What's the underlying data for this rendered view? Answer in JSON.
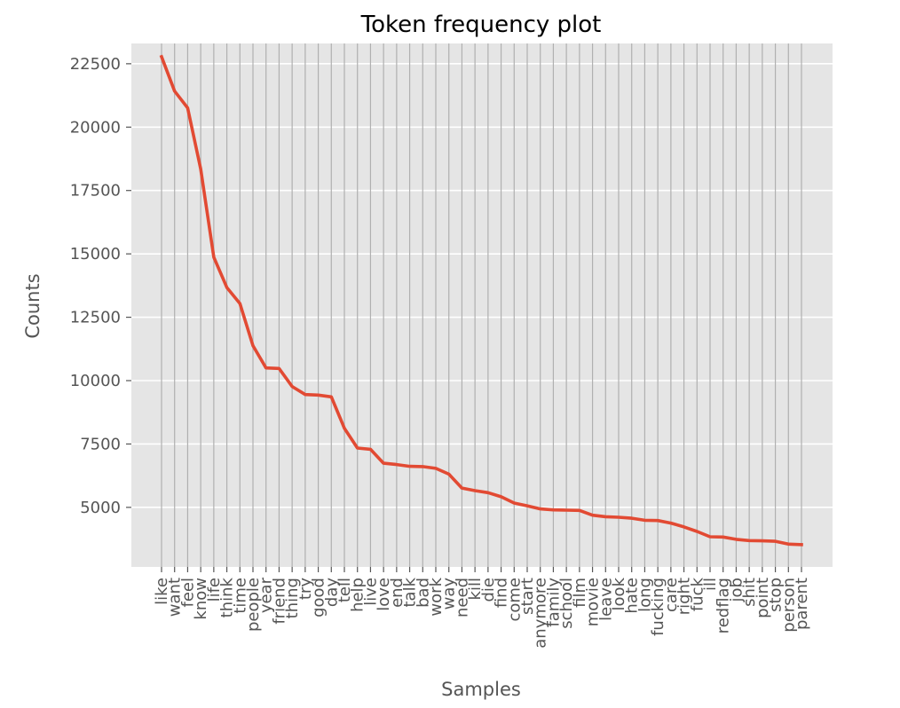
{
  "chart_data": {
    "type": "line",
    "title": "Token frequency plot",
    "xlabel": "Samples",
    "ylabel": "Counts",
    "grid": true,
    "ylim": [
      2650,
      23300
    ],
    "yticks": [
      5000,
      7500,
      10000,
      12500,
      15000,
      17500,
      20000,
      22500
    ],
    "yticklabels": [
      "5000",
      "7500",
      "10000",
      "12500",
      "15000",
      "17500",
      "20000",
      "22500"
    ],
    "categories": [
      "like",
      "want",
      "feel",
      "know",
      "life",
      "think",
      "time",
      "people",
      "year",
      "friend",
      "thing",
      "try",
      "good",
      "day",
      "tell",
      "help",
      "live",
      "love",
      "end",
      "talk",
      "bad",
      "work",
      "way",
      "need",
      "kill",
      "die",
      "find",
      "come",
      "start",
      "anymore",
      "family",
      "school",
      "film",
      "movie",
      "leave",
      "look",
      "hate",
      "long",
      "fucking",
      "care",
      "right",
      "fuck",
      "ill",
      "redflag",
      "job",
      "shit",
      "point",
      "stop",
      "person",
      "parent"
    ],
    "values": [
      22780,
      21420,
      20760,
      18350,
      14870,
      13670,
      13040,
      11380,
      10500,
      10480,
      9770,
      9450,
      9430,
      9360,
      8120,
      7340,
      7290,
      6740,
      6690,
      6620,
      6610,
      6540,
      6310,
      5760,
      5660,
      5580,
      5420,
      5170,
      5060,
      4940,
      4900,
      4890,
      4880,
      4690,
      4630,
      4610,
      4570,
      4490,
      4480,
      4380,
      4230,
      4050,
      3840,
      3830,
      3740,
      3690,
      3680,
      3660,
      3550,
      3530
    ],
    "colors": {
      "line": "#E24A33",
      "plot_background": "#E5E5E5",
      "grid": "#FFFFFF",
      "text": "#555555",
      "title": "#000000"
    }
  }
}
